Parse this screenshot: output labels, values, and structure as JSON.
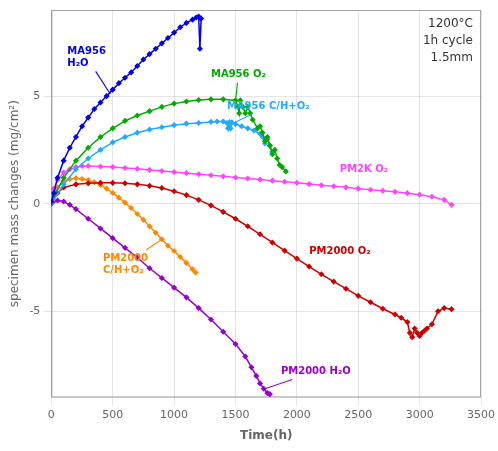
{
  "chart_data": {
    "type": "line",
    "xlabel": "Time(h)",
    "ylabel": "specimen mass changes (mg/cm²)",
    "xlim": [
      0,
      3500
    ],
    "ylim": [
      -9,
      9
    ],
    "xticks": [
      0,
      500,
      1000,
      1500,
      2000,
      2500,
      3000,
      3500
    ],
    "yticks": [
      -5,
      0,
      5
    ],
    "grid": true,
    "marker": "diamond",
    "annotations": [
      {
        "text": "1200°C\n1h cycle\n1.5mm"
      }
    ],
    "series": [
      {
        "color": "#0000ee",
        "x": [
          0,
          20,
          50,
          100,
          150,
          200,
          250,
          300,
          350,
          400,
          450,
          500,
          550,
          600,
          650,
          700,
          750,
          800,
          850,
          900,
          950,
          1000,
          1050,
          1100,
          1150,
          1180,
          1200,
          1210,
          1220
        ],
        "values": [
          0.1,
          0.5,
          1.2,
          2.0,
          2.6,
          3.1,
          3.6,
          4.0,
          4.4,
          4.7,
          5.0,
          5.3,
          5.6,
          5.85,
          6.1,
          6.4,
          6.7,
          6.95,
          7.2,
          7.45,
          7.7,
          7.95,
          8.2,
          8.4,
          8.55,
          8.65,
          8.7,
          7.2,
          8.6
        ],
        "annotation": {
          "text": "MA956\nH₂O",
          "x": 130,
          "y": 6.8,
          "arrow_to": [
            480,
            5.1
          ]
        }
      },
      {
        "color": "#00aa00",
        "x": [
          0,
          100,
          200,
          300,
          400,
          500,
          600,
          700,
          800,
          900,
          1000,
          1100,
          1200,
          1300,
          1400,
          1500,
          1520,
          1530,
          1540,
          1560,
          1580,
          1600,
          1620,
          1640,
          1680,
          1700,
          1720,
          1740,
          1760,
          1780,
          1800,
          1820,
          1840,
          1860,
          1880,
          1910
        ],
        "values": [
          0.1,
          1.2,
          2.0,
          2.6,
          3.1,
          3.5,
          3.85,
          4.1,
          4.3,
          4.5,
          4.65,
          4.75,
          4.82,
          4.85,
          4.85,
          4.8,
          4.5,
          4.2,
          4.8,
          4.5,
          4.2,
          4.5,
          4.2,
          3.9,
          3.5,
          3.6,
          3.3,
          2.9,
          3.1,
          2.7,
          2.3,
          2.5,
          2.1,
          1.8,
          1.7,
          1.5
        ],
        "annotation": {
          "text": "MA956 O₂",
          "x": 1300,
          "y": 6.0,
          "arrow_to": [
            1500,
            4.8
          ]
        }
      },
      {
        "color": "#22aaff",
        "x": [
          0,
          100,
          200,
          300,
          400,
          500,
          600,
          700,
          800,
          900,
          1000,
          1100,
          1200,
          1300,
          1350,
          1400,
          1430,
          1440,
          1450,
          1460,
          1470,
          1500,
          1550,
          1600,
          1650,
          1700,
          1720,
          1740,
          1760,
          1780,
          1800
        ],
        "values": [
          0.0,
          0.9,
          1.6,
          2.1,
          2.5,
          2.85,
          3.1,
          3.3,
          3.45,
          3.55,
          3.65,
          3.72,
          3.75,
          3.8,
          3.82,
          3.82,
          3.75,
          3.5,
          3.78,
          3.5,
          3.78,
          3.7,
          3.6,
          3.5,
          3.4,
          3.25,
          3.1,
          2.8,
          3.0,
          2.7,
          2.4
        ],
        "annotation": {
          "text": "MA956 C/H+O₂",
          "x": 1430,
          "y": 4.5,
          "arrow_to": [
            1500,
            3.8
          ]
        }
      },
      {
        "color": "#ff44ff",
        "x": [
          0,
          20,
          50,
          100,
          150,
          200,
          250,
          300,
          400,
          500,
          600,
          700,
          800,
          900,
          1000,
          1100,
          1200,
          1300,
          1400,
          1500,
          1600,
          1700,
          1800,
          1900,
          2000,
          2100,
          2200,
          2300,
          2400,
          2500,
          2600,
          2700,
          2800,
          2900,
          3000,
          3100,
          3200,
          3260
        ],
        "values": [
          0.0,
          0.7,
          1.1,
          1.45,
          1.6,
          1.7,
          1.75,
          1.75,
          1.73,
          1.7,
          1.66,
          1.62,
          1.57,
          1.52,
          1.47,
          1.42,
          1.37,
          1.32,
          1.27,
          1.22,
          1.17,
          1.12,
          1.07,
          1.02,
          0.97,
          0.91,
          0.86,
          0.81,
          0.76,
          0.7,
          0.65,
          0.6,
          0.55,
          0.49,
          0.42,
          0.32,
          0.18,
          -0.05
        ],
        "annotation": {
          "text": "PM2K O₂",
          "x": 2350,
          "y": 1.6
        }
      },
      {
        "color": "#cc0000",
        "x": [
          0,
          50,
          100,
          200,
          300,
          400,
          500,
          600,
          700,
          800,
          900,
          1000,
          1100,
          1200,
          1300,
          1400,
          1500,
          1600,
          1700,
          1800,
          1900,
          2000,
          2100,
          2200,
          2300,
          2400,
          2500,
          2600,
          2700,
          2800,
          2850,
          2900,
          2920,
          2940,
          2960,
          2980,
          3000,
          3020,
          3040,
          3060,
          3100,
          3150,
          3200,
          3260
        ],
        "values": [
          0.0,
          0.5,
          0.75,
          0.9,
          0.95,
          0.97,
          0.97,
          0.95,
          0.9,
          0.83,
          0.73,
          0.58,
          0.4,
          0.18,
          -0.08,
          -0.38,
          -0.7,
          -1.05,
          -1.42,
          -1.8,
          -2.18,
          -2.55,
          -2.92,
          -3.28,
          -3.62,
          -3.95,
          -4.28,
          -4.58,
          -4.88,
          -5.15,
          -5.3,
          -5.5,
          -6.0,
          -6.2,
          -5.8,
          -6.0,
          -6.15,
          -6.0,
          -5.9,
          -5.8,
          -5.6,
          -5.0,
          -4.85,
          -4.9
        ],
        "annotation": {
          "text": "PM2000 O₂",
          "x": 2100,
          "y": -2.2
        }
      },
      {
        "color": "#9900cc",
        "x": [
          0,
          50,
          100,
          150,
          200,
          300,
          400,
          500,
          600,
          700,
          800,
          900,
          1000,
          1100,
          1200,
          1300,
          1400,
          1500,
          1580,
          1630,
          1670,
          1700,
          1730,
          1760,
          1780
        ],
        "values": [
          0.0,
          0.15,
          0.1,
          -0.05,
          -0.25,
          -0.7,
          -1.15,
          -1.6,
          -2.05,
          -2.5,
          -3.0,
          -3.45,
          -3.9,
          -4.35,
          -4.85,
          -5.38,
          -5.95,
          -6.52,
          -7.1,
          -7.6,
          -8.0,
          -8.35,
          -8.6,
          -8.8,
          -8.85
        ],
        "annotation": {
          "text": "PM2000 H₂O",
          "x": 1870,
          "y": -7.8,
          "arrow_to": [
            1740,
            -8.6
          ]
        }
      },
      {
        "color": "#ff8800",
        "x": [
          0,
          20,
          50,
          100,
          150,
          200,
          250,
          300,
          350,
          400,
          450,
          500,
          550,
          600,
          650,
          700,
          750,
          800,
          850,
          900,
          950,
          1000,
          1050,
          1100,
          1150,
          1175
        ],
        "values": [
          0.0,
          0.4,
          0.75,
          1.05,
          1.15,
          1.18,
          1.15,
          1.1,
          1.0,
          0.87,
          0.7,
          0.5,
          0.28,
          0.05,
          -0.2,
          -0.48,
          -0.75,
          -1.05,
          -1.35,
          -1.65,
          -1.95,
          -2.2,
          -2.48,
          -2.75,
          -3.05,
          -3.2
        ],
        "annotation": {
          "text": "PM2000\nC/H+O₂",
          "x": 420,
          "y": -2.8,
          "arrow_to": [
            900,
            -1.65
          ]
        }
      }
    ]
  }
}
